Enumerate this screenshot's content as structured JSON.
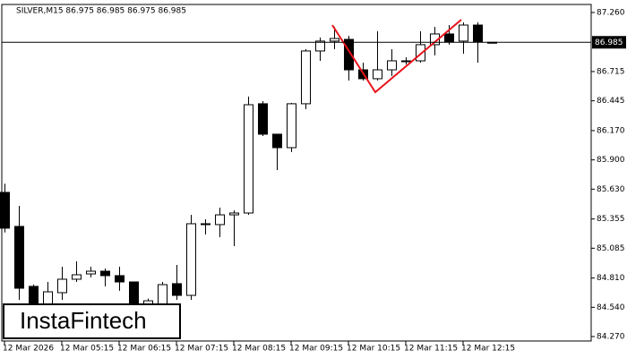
{
  "header": "SILVER,M15  86.975 86.985 86.975 86.985",
  "logo": "InstaFintech",
  "chart_data": {
    "type": "candlestick",
    "categories": [
      "12 Mar 2026",
      null,
      null,
      null,
      "12 Mar 05:15",
      null,
      null,
      null,
      "12 Mar 06:15",
      null,
      null,
      null,
      "12 Mar 07:15",
      null,
      null,
      null,
      "12 Mar 08:15",
      null,
      null,
      null,
      "12 Mar 09:15",
      null,
      null,
      null,
      "12 Mar 10:15",
      null,
      null,
      null,
      "12 Mar 11:15",
      null,
      null,
      null,
      "12 Mar 12:15",
      null,
      null
    ],
    "open": [
      85.6,
      85.286,
      84.733,
      84.567,
      84.675,
      84.799,
      84.848,
      84.873,
      84.832,
      84.774,
      84.526,
      84.567,
      84.758,
      84.65,
      85.311,
      85.303,
      85.393,
      85.41,
      86.418,
      86.137,
      86.013,
      86.418,
      86.905,
      86.996,
      87.012,
      86.731,
      86.649,
      86.731,
      86.814,
      86.814,
      86.963,
      87.062,
      86.996,
      87.144,
      86.985
    ],
    "high": [
      85.68,
      85.476,
      84.749,
      84.774,
      84.914,
      84.964,
      84.914,
      84.898,
      84.914,
      84.774,
      84.62,
      84.774,
      84.931,
      85.393,
      85.352,
      85.459,
      85.435,
      86.484,
      86.442,
      86.137,
      86.426,
      86.921,
      87.029,
      87.128,
      87.045,
      86.797,
      87.087,
      86.921,
      86.847,
      87.087,
      87.128,
      87.144,
      87.169,
      87.169,
      86.985
    ],
    "low": [
      85.23,
      84.609,
      84.485,
      84.526,
      84.609,
      84.774,
      84.815,
      84.733,
      84.692,
      84.485,
      84.45,
      84.526,
      84.609,
      84.609,
      85.212,
      85.187,
      85.104,
      85.393,
      86.12,
      85.806,
      85.972,
      86.368,
      86.814,
      86.921,
      86.632,
      86.632,
      86.632,
      86.674,
      86.781,
      86.797,
      86.864,
      86.963,
      86.88,
      86.797,
      86.975
    ],
    "close": [
      85.27,
      84.716,
      84.567,
      84.683,
      84.799,
      84.84,
      84.873,
      84.832,
      84.774,
      84.526,
      84.6,
      84.749,
      84.65,
      85.311,
      85.303,
      85.393,
      85.41,
      86.409,
      86.137,
      86.013,
      86.418,
      86.905,
      86.996,
      87.02,
      86.731,
      86.649,
      86.731,
      86.814,
      86.814,
      86.963,
      87.062,
      86.987,
      87.144,
      86.987,
      86.985
    ],
    "up_color": "#ffffff",
    "down_color": "#000000",
    "ylim": [
      84.229,
      87.334
    ],
    "yticks": [
      {
        "value": 87.26,
        "label": "87.260"
      },
      {
        "value": 86.715,
        "label": "86.715"
      },
      {
        "value": 86.445,
        "label": "86.445"
      },
      {
        "value": 86.17,
        "label": "86.170"
      },
      {
        "value": 85.9,
        "label": "85.900"
      },
      {
        "value": 85.63,
        "label": "85.630"
      },
      {
        "value": 85.355,
        "label": "85.355"
      },
      {
        "value": 85.085,
        "label": "85.085"
      },
      {
        "value": 84.81,
        "label": "84.810"
      },
      {
        "value": 84.54,
        "label": "84.540"
      },
      {
        "value": 84.27,
        "label": "84.270"
      }
    ],
    "current_price": {
      "value": 86.985,
      "label": "86.985"
    }
  }
}
